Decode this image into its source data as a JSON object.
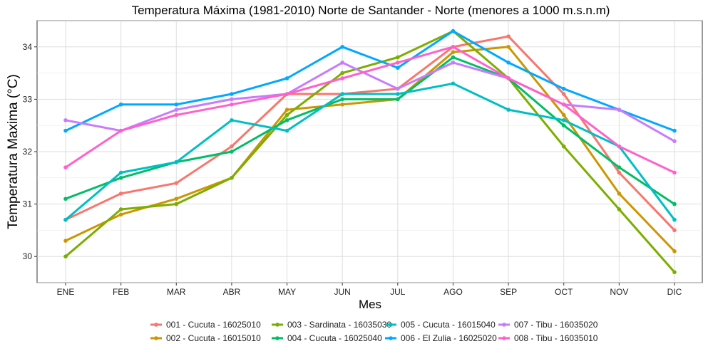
{
  "chart_data": {
    "type": "line",
    "title": "Temperatura Máxima (1981-2010) Norte de Santander - Norte (menores a 1000 m.s.n.m)",
    "xlabel": "Mes",
    "ylabel": "Temperatura Maxima (°C)",
    "categories": [
      "ENE",
      "FEB",
      "MAR",
      "ABR",
      "MAY",
      "JUN",
      "JUL",
      "AGO",
      "SEP",
      "OCT",
      "NOV",
      "DIC"
    ],
    "ylim": [
      29.5,
      34.5
    ],
    "yticks": [
      30,
      31,
      32,
      33,
      34
    ],
    "ytick_labels": [
      "30",
      "31",
      "32",
      "33",
      "34"
    ],
    "grid": true,
    "legend_position": "bottom",
    "series": [
      {
        "name": "001 - Cucuta - 16025010",
        "color": "#F8766D",
        "values": [
          30.7,
          31.2,
          31.4,
          32.1,
          33.1,
          33.1,
          33.2,
          34.0,
          34.2,
          33.1,
          31.6,
          30.5
        ]
      },
      {
        "name": "002 - Cucuta - 16015010",
        "color": "#CD9600",
        "values": [
          30.3,
          30.8,
          31.1,
          31.5,
          32.8,
          32.9,
          33.0,
          33.9,
          34.0,
          32.7,
          31.2,
          30.1
        ]
      },
      {
        "name": "003 - Sardinata - 16035030",
        "color": "#7CAE00",
        "values": [
          30.0,
          30.9,
          31.0,
          31.5,
          32.7,
          33.5,
          33.8,
          34.3,
          33.4,
          32.1,
          30.9,
          29.7
        ]
      },
      {
        "name": "004 - Cucuta - 16025040",
        "color": "#00BE67",
        "values": [
          31.1,
          31.5,
          31.8,
          32.0,
          32.6,
          33.0,
          33.0,
          33.8,
          33.4,
          32.5,
          31.7,
          31.0
        ]
      },
      {
        "name": "005 - Cucuta - 16015040",
        "color": "#00BFC4",
        "values": [
          30.7,
          31.6,
          31.8,
          32.6,
          32.4,
          33.1,
          33.1,
          33.3,
          32.8,
          32.6,
          32.1,
          30.7
        ]
      },
      {
        "name": "006 - El Zulia - 16025020",
        "color": "#00A9FF",
        "values": [
          32.4,
          32.9,
          32.9,
          33.1,
          33.4,
          34.0,
          33.6,
          34.3,
          33.7,
          33.2,
          32.8,
          32.4
        ]
      },
      {
        "name": "007 - Tibu - 16035020",
        "color": "#C77CFF",
        "values": [
          32.6,
          32.4,
          32.8,
          33.0,
          33.1,
          33.7,
          33.2,
          33.7,
          33.4,
          32.9,
          32.8,
          32.2
        ]
      },
      {
        "name": "008 - Tibu - 16035010",
        "color": "#FF61CC",
        "values": [
          31.7,
          32.4,
          32.7,
          32.9,
          33.1,
          33.4,
          33.7,
          34.0,
          33.4,
          32.9,
          32.1,
          31.6
        ]
      }
    ]
  }
}
